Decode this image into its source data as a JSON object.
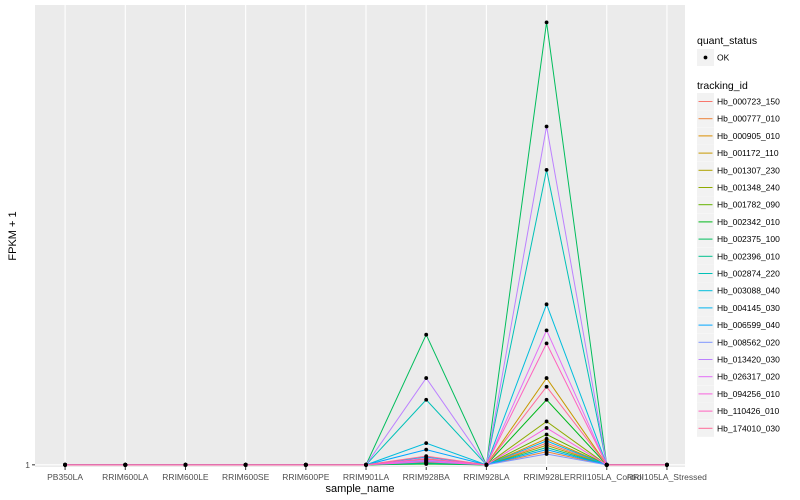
{
  "chart_data": {
    "type": "line",
    "xlabel": "sample_name",
    "ylabel": "FPKM + 1",
    "y_tick_labels": [
      "1"
    ],
    "y_tick_values": [
      1
    ],
    "ylim": [
      0.95,
      11.6
    ],
    "grid": true,
    "legend_placement": "right",
    "categories": [
      "PB350LA",
      "RRIM600LA",
      "RRIM600LE",
      "RRIM600SE",
      "RRIM600PE",
      "RRIM901LA",
      "RRIM928BA",
      "RRIM928LA",
      "RRIM928LE",
      "RRII105LA_Control",
      "RRII105LA_Stressed"
    ],
    "points_legend": {
      "title": "quant_status",
      "items": [
        "OK"
      ]
    },
    "lines_legend_title": "tracking_id",
    "series": [
      {
        "name": "Hb_000723_150",
        "color": "#F8766D",
        "values": [
          1,
          1,
          1,
          1,
          1,
          1,
          1.12,
          1,
          1.5,
          1,
          1
        ]
      },
      {
        "name": "Hb_000777_010",
        "color": "#EC8239",
        "values": [
          1,
          1,
          1,
          1,
          1,
          1,
          1.08,
          1,
          1.3,
          1,
          1
        ]
      },
      {
        "name": "Hb_000905_010",
        "color": "#DB8E00",
        "values": [
          1,
          1,
          1,
          1,
          1,
          1,
          1.14,
          1,
          1.6,
          1,
          1
        ]
      },
      {
        "name": "Hb_001172_110",
        "color": "#C79800",
        "values": [
          1,
          1,
          1,
          1,
          1,
          1,
          1.05,
          1,
          3.0,
          1,
          1
        ]
      },
      {
        "name": "Hb_001307_230",
        "color": "#AEA200",
        "values": [
          1,
          1,
          1,
          1,
          1,
          1,
          1.1,
          1,
          1.45,
          1,
          1
        ]
      },
      {
        "name": "Hb_001348_240",
        "color": "#8FAA00",
        "values": [
          1,
          1,
          1,
          1,
          1,
          1,
          1.03,
          1,
          2.0,
          1,
          1
        ]
      },
      {
        "name": "Hb_001782_090",
        "color": "#64B200",
        "values": [
          1,
          1,
          1,
          1,
          1,
          1,
          1.06,
          1,
          1.7,
          1,
          1
        ]
      },
      {
        "name": "Hb_002342_010",
        "color": "#00B81B",
        "values": [
          1,
          1,
          1,
          1,
          1,
          1,
          1.02,
          1,
          2.5,
          1,
          1
        ]
      },
      {
        "name": "Hb_002375_100",
        "color": "#00BD5C",
        "values": [
          1,
          1,
          1,
          1,
          1,
          1,
          4.0,
          1,
          11.2,
          1,
          1
        ]
      },
      {
        "name": "Hb_002396_010",
        "color": "#00C08E",
        "values": [
          1,
          1,
          1,
          1,
          1,
          1,
          1.04,
          1,
          1.4,
          1,
          1
        ]
      },
      {
        "name": "Hb_002874_220",
        "color": "#00C1B7",
        "values": [
          1,
          1,
          1,
          1,
          1,
          1,
          2.5,
          1,
          7.8,
          1,
          1
        ]
      },
      {
        "name": "Hb_003088_040",
        "color": "#00BDDC",
        "values": [
          1,
          1,
          1,
          1,
          1,
          1,
          1.5,
          1,
          4.7,
          1,
          1
        ]
      },
      {
        "name": "Hb_004145_030",
        "color": "#00B4F0",
        "values": [
          1,
          1,
          1,
          1,
          1,
          1,
          1.18,
          1,
          1.55,
          1,
          1
        ]
      },
      {
        "name": "Hb_006599_040",
        "color": "#00A5FF",
        "values": [
          1,
          1,
          1,
          1,
          1,
          1,
          1.35,
          1,
          1.35,
          1,
          1
        ]
      },
      {
        "name": "Hb_008562_020",
        "color": "#7F96FF",
        "values": [
          1,
          1,
          1,
          1,
          1,
          1,
          1.09,
          1,
          1.25,
          1,
          1
        ]
      },
      {
        "name": "Hb_013420_030",
        "color": "#BC81FF",
        "values": [
          1,
          1,
          1,
          1,
          1,
          1,
          3.0,
          1,
          8.8,
          1,
          1
        ]
      },
      {
        "name": "Hb_026317_020",
        "color": "#E26EF7",
        "values": [
          1,
          1,
          1,
          1,
          1,
          1,
          1.11,
          1,
          4.1,
          1,
          1
        ]
      },
      {
        "name": "Hb_094256_010",
        "color": "#F863DF",
        "values": [
          1,
          1,
          1,
          1,
          1,
          1,
          1.07,
          1,
          1.85,
          1,
          1
        ]
      },
      {
        "name": "Hb_110426_010",
        "color": "#FF62BF",
        "values": [
          1,
          1,
          1,
          1,
          1,
          1,
          1.15,
          1,
          3.8,
          1,
          1
        ]
      },
      {
        "name": "Hb_174010_030",
        "color": "#FF6A98",
        "values": [
          1,
          1,
          1,
          1,
          1,
          1,
          1.2,
          1,
          2.8,
          1,
          1
        ]
      }
    ]
  }
}
